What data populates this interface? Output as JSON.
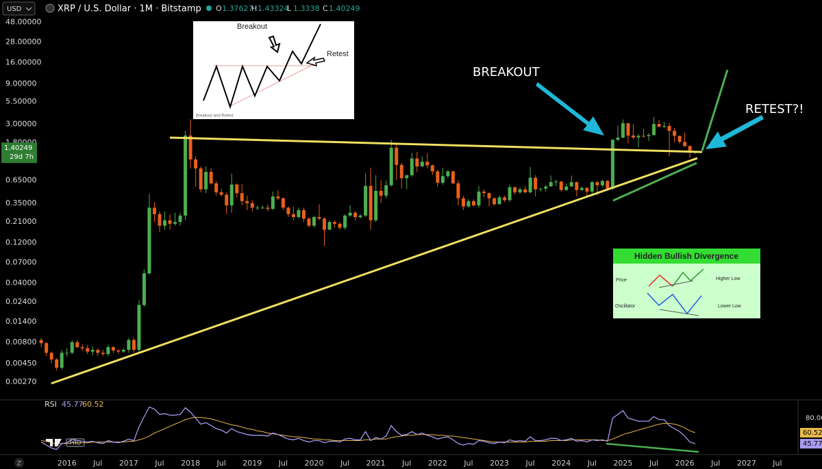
{
  "ui": {
    "currency": "USD",
    "logo": "PRO",
    "corner": "Z"
  },
  "chart_data": {
    "type": "candlestick",
    "title": "XRP / U.S. Dollar · 1M · Bitstamp",
    "ohlc_labels": [
      "O",
      "H",
      "L",
      "C"
    ],
    "countdown": "29d 7h",
    "log_scale": true,
    "up_color": "#4caf50",
    "down_color": "#e8601c",
    "x": [
      "2015-08",
      "2015-09",
      "2015-10",
      "2015-11",
      "2015-12",
      "2016-01",
      "2016-02",
      "2016-03",
      "2016-04",
      "2016-05",
      "2016-06",
      "2016-07",
      "2016-08",
      "2016-09",
      "2016-10",
      "2016-11",
      "2016-12",
      "2017-01",
      "2017-02",
      "2017-03",
      "2017-04",
      "2017-05",
      "2017-06",
      "2017-07",
      "2017-08",
      "2017-09",
      "2017-10",
      "2017-11",
      "2017-12",
      "2018-01",
      "2018-02",
      "2018-03",
      "2018-04",
      "2018-05",
      "2018-06",
      "2018-07",
      "2018-08",
      "2018-09",
      "2018-10",
      "2018-11",
      "2018-12",
      "2019-01",
      "2019-02",
      "2019-03",
      "2019-04",
      "2019-05",
      "2019-06",
      "2019-07",
      "2019-08",
      "2019-09",
      "2019-10",
      "2019-11",
      "2019-12",
      "2020-01",
      "2020-02",
      "2020-03",
      "2020-04",
      "2020-05",
      "2020-06",
      "2020-07",
      "2020-08",
      "2020-09",
      "2020-10",
      "2020-11",
      "2020-12",
      "2021-01",
      "2021-02",
      "2021-03",
      "2021-04",
      "2021-05",
      "2021-06",
      "2021-07",
      "2021-08",
      "2021-09",
      "2021-10",
      "2021-11",
      "2021-12",
      "2022-01",
      "2022-02",
      "2022-03",
      "2022-04",
      "2022-05",
      "2022-06",
      "2022-07",
      "2022-08",
      "2022-09",
      "2022-10",
      "2022-11",
      "2022-12",
      "2023-01",
      "2023-02",
      "2023-03",
      "2023-04",
      "2023-05",
      "2023-06",
      "2023-07",
      "2023-08",
      "2023-09",
      "2023-10",
      "2023-11",
      "2023-12",
      "2024-01",
      "2024-02",
      "2024-03",
      "2024-04",
      "2024-05",
      "2024-06",
      "2024-07",
      "2024-08",
      "2024-09",
      "2024-10",
      "2024-11",
      "2024-12",
      "2025-01",
      "2025-02",
      "2025-03",
      "2025-04",
      "2025-05",
      "2025-06",
      "2025-07",
      "2025-08",
      "2025-09",
      "2025-10",
      "2025-11",
      "2025-12",
      "2026-01",
      "2026-02",
      "2026-03"
    ],
    "open": [
      0.0085,
      0.0078,
      0.006,
      0.005,
      0.004,
      0.006,
      0.006,
      0.008,
      0.007,
      0.0068,
      0.0062,
      0.0065,
      0.006,
      0.0058,
      0.007,
      0.0064,
      0.0062,
      0.0065,
      0.0085,
      0.0065,
      0.022,
      0.052,
      0.31,
      0.26,
      0.19,
      0.22,
      0.2,
      0.21,
      0.25,
      2.2,
      1.15,
      0.9,
      0.51,
      0.82,
      0.6,
      0.47,
      0.44,
      0.33,
      0.58,
      0.46,
      0.37,
      0.35,
      0.31,
      0.31,
      0.31,
      0.3,
      0.42,
      0.4,
      0.31,
      0.26,
      0.24,
      0.29,
      0.23,
      0.19,
      0.24,
      0.23,
      0.17,
      0.21,
      0.2,
      0.18,
      0.25,
      0.27,
      0.24,
      0.25,
      0.56,
      0.22,
      0.49,
      0.43,
      0.57,
      1.58,
      0.99,
      0.69,
      0.75,
      1.18,
      0.95,
      1.08,
      0.98,
      0.83,
      0.61,
      0.73,
      0.83,
      0.6,
      0.4,
      0.32,
      0.37,
      0.33,
      0.48,
      0.46,
      0.4,
      0.34,
      0.41,
      0.38,
      0.54,
      0.47,
      0.51,
      0.47,
      0.7,
      0.51,
      0.52,
      0.55,
      0.62,
      0.63,
      0.5,
      0.55,
      0.62,
      0.5,
      0.53,
      0.48,
      0.62,
      0.57,
      0.64,
      0.52,
      1.96,
      2.08,
      3.08,
      2.2,
      2.09,
      2.18,
      2.17,
      2.23,
      3.01,
      2.8,
      2.85,
      2.5,
      2.18,
      1.85,
      1.65,
      1.37627
    ],
    "high": [
      0.009,
      0.008,
      0.0062,
      0.0052,
      0.0065,
      0.0068,
      0.0085,
      0.0085,
      0.0075,
      0.0074,
      0.0072,
      0.0068,
      0.0065,
      0.0075,
      0.0072,
      0.0066,
      0.0068,
      0.009,
      0.009,
      0.025,
      0.058,
      0.45,
      0.36,
      0.28,
      0.28,
      0.26,
      0.27,
      0.27,
      2.5,
      3.4,
      1.25,
      0.95,
      0.95,
      0.9,
      0.64,
      0.52,
      0.47,
      0.78,
      0.6,
      0.59,
      0.43,
      0.38,
      0.33,
      0.33,
      0.34,
      0.48,
      0.5,
      0.41,
      0.32,
      0.32,
      0.31,
      0.31,
      0.24,
      0.25,
      0.34,
      0.24,
      0.22,
      0.22,
      0.21,
      0.26,
      0.33,
      0.28,
      0.26,
      0.78,
      0.92,
      0.75,
      0.65,
      0.65,
      1.96,
      1.77,
      1.05,
      0.75,
      1.38,
      1.41,
      1.25,
      1.35,
      1.0,
      0.87,
      0.91,
      0.87,
      0.85,
      0.65,
      0.43,
      0.39,
      0.39,
      0.56,
      0.51,
      0.47,
      0.41,
      0.43,
      0.43,
      0.58,
      0.55,
      0.54,
      0.56,
      0.94,
      0.75,
      0.53,
      0.58,
      0.74,
      0.66,
      0.64,
      0.6,
      0.74,
      0.63,
      0.55,
      0.54,
      0.64,
      0.64,
      0.66,
      0.66,
      2.0,
      2.91,
      3.4,
      3.09,
      3.0,
      2.3,
      2.65,
      2.35,
      3.66,
      3.38,
      3.18,
      3.1,
      2.7,
      2.2,
      2.4,
      1.7,
      1.43324
    ],
    "low": [
      0.007,
      0.0055,
      0.0045,
      0.0037,
      0.0038,
      0.0054,
      0.0058,
      0.0068,
      0.0063,
      0.0058,
      0.0056,
      0.0055,
      0.0055,
      0.0055,
      0.006,
      0.0058,
      0.006,
      0.006,
      0.006,
      0.006,
      0.021,
      0.05,
      0.21,
      0.16,
      0.17,
      0.17,
      0.19,
      0.19,
      0.22,
      0.9,
      0.55,
      0.47,
      0.46,
      0.58,
      0.43,
      0.42,
      0.26,
      0.27,
      0.41,
      0.33,
      0.29,
      0.28,
      0.29,
      0.3,
      0.28,
      0.29,
      0.38,
      0.29,
      0.24,
      0.22,
      0.23,
      0.21,
      0.18,
      0.18,
      0.22,
      0.11,
      0.17,
      0.18,
      0.17,
      0.17,
      0.24,
      0.22,
      0.23,
      0.24,
      0.17,
      0.21,
      0.35,
      0.4,
      0.55,
      0.65,
      0.52,
      0.51,
      0.72,
      0.82,
      0.94,
      0.9,
      0.75,
      0.55,
      0.58,
      0.69,
      0.59,
      0.33,
      0.29,
      0.31,
      0.32,
      0.31,
      0.41,
      0.32,
      0.33,
      0.34,
      0.36,
      0.36,
      0.44,
      0.45,
      0.46,
      0.46,
      0.42,
      0.48,
      0.48,
      0.55,
      0.56,
      0.48,
      0.49,
      0.55,
      0.42,
      0.49,
      0.43,
      0.42,
      0.43,
      0.54,
      0.49,
      0.5,
      1.87,
      2.05,
      1.77,
      2.0,
      1.61,
      2.08,
      1.9,
      2.2,
      2.73,
      2.69,
      1.25,
      1.82,
      1.77,
      1.62,
      1.2,
      1.3338
    ],
    "close": [
      0.0078,
      0.006,
      0.005,
      0.004,
      0.006,
      0.006,
      0.008,
      0.007,
      0.0068,
      0.0062,
      0.0065,
      0.006,
      0.0058,
      0.007,
      0.0064,
      0.0062,
      0.0065,
      0.0085,
      0.0065,
      0.022,
      0.052,
      0.31,
      0.26,
      0.19,
      0.22,
      0.2,
      0.21,
      0.25,
      2.2,
      1.15,
      0.9,
      0.51,
      0.82,
      0.6,
      0.47,
      0.44,
      0.33,
      0.58,
      0.46,
      0.37,
      0.35,
      0.31,
      0.31,
      0.31,
      0.3,
      0.42,
      0.4,
      0.31,
      0.26,
      0.24,
      0.29,
      0.23,
      0.19,
      0.24,
      0.23,
      0.17,
      0.21,
      0.2,
      0.18,
      0.25,
      0.27,
      0.24,
      0.25,
      0.56,
      0.22,
      0.49,
      0.43,
      0.57,
      1.58,
      0.99,
      0.69,
      0.75,
      1.18,
      0.95,
      1.08,
      0.98,
      0.83,
      0.61,
      0.73,
      0.83,
      0.6,
      0.4,
      0.32,
      0.37,
      0.33,
      0.48,
      0.46,
      0.4,
      0.34,
      0.41,
      0.38,
      0.54,
      0.47,
      0.51,
      0.47,
      0.7,
      0.51,
      0.52,
      0.55,
      0.62,
      0.63,
      0.5,
      0.55,
      0.62,
      0.5,
      0.53,
      0.48,
      0.62,
      0.57,
      0.64,
      0.52,
      1.96,
      2.08,
      3.08,
      2.2,
      2.09,
      2.18,
      2.17,
      2.23,
      3.01,
      2.8,
      2.85,
      2.5,
      2.18,
      1.85,
      1.65,
      1.38,
      1.40249
    ],
    "xlim": [
      "2014-12",
      "2027-11"
    ],
    "xticks": [
      {
        "value": "2016-01",
        "label": "2016"
      },
      {
        "value": "2016-07",
        "label": "Jul"
      },
      {
        "value": "2017-01",
        "label": "2017"
      },
      {
        "value": "2017-07",
        "label": "Jul"
      },
      {
        "value": "2018-01",
        "label": "2018"
      },
      {
        "value": "2018-07",
        "label": "Jul"
      },
      {
        "value": "2019-01",
        "label": "2019"
      },
      {
        "value": "2019-07",
        "label": "Jul"
      },
      {
        "value": "2020-01",
        "label": "2020"
      },
      {
        "value": "2020-07",
        "label": "Jul"
      },
      {
        "value": "2021-01",
        "label": "2021"
      },
      {
        "value": "2021-07",
        "label": "Jul"
      },
      {
        "value": "2022-01",
        "label": "2022"
      },
      {
        "value": "2022-07",
        "label": "Jul"
      },
      {
        "value": "2023-01",
        "label": "2023"
      },
      {
        "value": "2023-07",
        "label": "Jul"
      },
      {
        "value": "2024-01",
        "label": "2024"
      },
      {
        "value": "2024-07",
        "label": "Jul"
      },
      {
        "value": "2025-01",
        "label": "2025"
      },
      {
        "value": "2025-07",
        "label": "Jul"
      },
      {
        "value": "2026-01",
        "label": "2026"
      },
      {
        "value": "2026-07",
        "label": "Jul"
      },
      {
        "value": "2027-01",
        "label": "2027"
      },
      {
        "value": "2027-07",
        "label": "Jul"
      }
    ],
    "ylim": [
      0.0018,
      56
    ],
    "yticks": [
      {
        "value": 48,
        "label": "48.00000"
      },
      {
        "value": 28,
        "label": "28.00000"
      },
      {
        "value": 16,
        "label": "16.00000"
      },
      {
        "value": 9,
        "label": "9.00000"
      },
      {
        "value": 5.5,
        "label": "5.50000"
      },
      {
        "value": 3,
        "label": "3.00000"
      },
      {
        "value": 1.8,
        "label": "1.80000"
      },
      {
        "value": 0.65,
        "label": "0.65000"
      },
      {
        "value": 0.35,
        "label": "0.35000"
      },
      {
        "value": 0.21,
        "label": "0.21000"
      },
      {
        "value": 0.12,
        "label": "0.12000"
      },
      {
        "value": 0.07,
        "label": "0.07000"
      },
      {
        "value": 0.04,
        "label": "0.04000"
      },
      {
        "value": 0.024,
        "label": "0.02400"
      },
      {
        "value": 0.014,
        "label": "0.01400"
      },
      {
        "value": 0.008,
        "label": "0.00800"
      },
      {
        "value": 0.0045,
        "label": "0.00450"
      },
      {
        "value": 0.0027,
        "label": "0.00270"
      }
    ],
    "annotations": {
      "breakout": "BREAKOUT",
      "retest": "RETEST?!"
    },
    "inset_breakout": {
      "breakout": "Breakout",
      "retest": "Retest",
      "caption": "Breakout and Retest"
    },
    "inset_divergence": {
      "title": "Hidden Bullish Divergence",
      "price": "Price",
      "higher_low": "Higher Low",
      "oscillator": "Oscillator",
      "lower_low": "Lower Low"
    },
    "rsi": {
      "name": "RSI",
      "ylim": [
        33,
        99
      ],
      "yticks": [
        {
          "value": 80,
          "label": "80.00"
        }
      ],
      "series": [
        {
          "color": "#a99af0",
          "values": [
            48,
            44,
            40,
            38,
            46,
            47,
            52,
            50,
            49,
            48,
            49,
            47,
            46,
            50,
            48,
            47,
            49,
            52,
            50,
            68,
            82,
            95,
            92,
            85,
            86,
            84,
            84,
            85,
            94,
            88,
            80,
            72,
            74,
            70,
            66,
            64,
            60,
            66,
            62,
            60,
            58,
            57,
            57,
            57,
            56,
            60,
            58,
            55,
            52,
            51,
            53,
            50,
            48,
            50,
            50,
            47,
            49,
            49,
            48,
            52,
            53,
            51,
            51,
            62,
            50,
            54,
            52,
            56,
            70,
            62,
            57,
            58,
            62,
            58,
            60,
            57,
            55,
            52,
            54,
            55,
            51,
            46,
            44,
            46,
            45,
            50,
            49,
            47,
            46,
            48,
            47,
            51,
            49,
            50,
            49,
            55,
            50,
            50,
            51,
            53,
            53,
            50,
            51,
            53,
            49,
            50,
            48,
            51,
            50,
            51,
            49,
            80,
            85,
            90,
            80,
            78,
            76,
            76,
            76,
            82,
            78,
            78,
            70,
            66,
            62,
            56,
            48,
            45.77
          ]
        },
        {
          "color": "#e9b949",
          "values": [
            50,
            49,
            47,
            46,
            46,
            46,
            47,
            47,
            47,
            47,
            48,
            48,
            48,
            48,
            48,
            48,
            48,
            49,
            49,
            51,
            53,
            56,
            60,
            63,
            66,
            69,
            72,
            75,
            78,
            80,
            81,
            81,
            80,
            79,
            77,
            75,
            73,
            71,
            70,
            68,
            66,
            65,
            63,
            62,
            60,
            59,
            58,
            57,
            56,
            55,
            55,
            54,
            53,
            52,
            52,
            51,
            51,
            50,
            50,
            50,
            50,
            50,
            50,
            51,
            51,
            52,
            52,
            52,
            54,
            55,
            56,
            57,
            57,
            58,
            58,
            58,
            58,
            57,
            57,
            56,
            56,
            55,
            54,
            53,
            52,
            51,
            50,
            49,
            48,
            48,
            48,
            48,
            48,
            48,
            48,
            49,
            49,
            49,
            49,
            50,
            50,
            50,
            50,
            51,
            51,
            51,
            51,
            51,
            51,
            50,
            50,
            52,
            55,
            58,
            60,
            62,
            64,
            66,
            68,
            70,
            72,
            73,
            73,
            72,
            70,
            67,
            63,
            60.52
          ]
        }
      ]
    }
  }
}
